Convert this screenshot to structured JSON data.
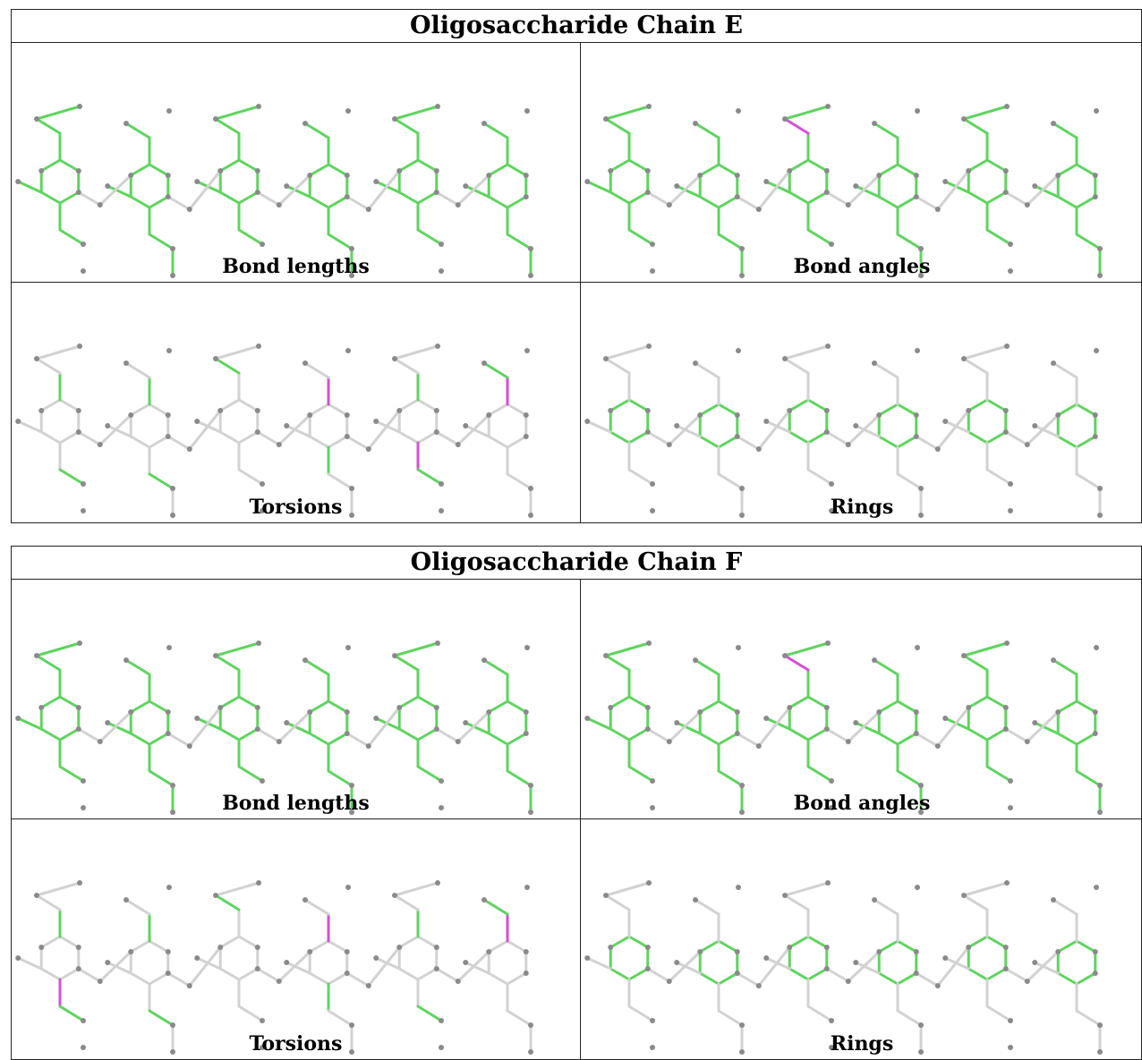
{
  "colors": {
    "ok": "#5fd45f",
    "outlier": "#d64fd6",
    "neutral": "#d2d2d2",
    "atom": "#8a8a8a"
  },
  "tables": [
    {
      "title": "Oligosaccharide Chain E",
      "panels": [
        {
          "caption": "Bond lengths",
          "mode": "all",
          "outliers": []
        },
        {
          "caption": "Bond angles",
          "mode": "all",
          "outliers": [
            [
              "r2_top",
              "r2_top_branch"
            ]
          ]
        },
        {
          "caption": "Torsions",
          "mode": "torsion",
          "outliers": [
            [
              "r3_top",
              "r3_ring0"
            ],
            [
              "r4_bot",
              "r4_ring3"
            ],
            [
              "r5_top",
              "r5_ring0"
            ]
          ]
        },
        {
          "caption": "Rings",
          "mode": "rings",
          "outliers": []
        }
      ]
    },
    {
      "title": "Oligosaccharide Chain F",
      "panels": [
        {
          "caption": "Bond lengths",
          "mode": "all",
          "outliers": []
        },
        {
          "caption": "Bond angles",
          "mode": "all",
          "outliers": [
            [
              "r2_top",
              "r2_top_branch"
            ]
          ]
        },
        {
          "caption": "Torsions",
          "mode": "torsion",
          "outliers": [
            [
              "r0_bot",
              "r0_ring3"
            ],
            [
              "r3_top",
              "r3_ring0"
            ],
            [
              "r5_top",
              "r5_ring0"
            ]
          ]
        },
        {
          "caption": "Rings",
          "mode": "rings",
          "outliers": []
        }
      ]
    }
  ]
}
